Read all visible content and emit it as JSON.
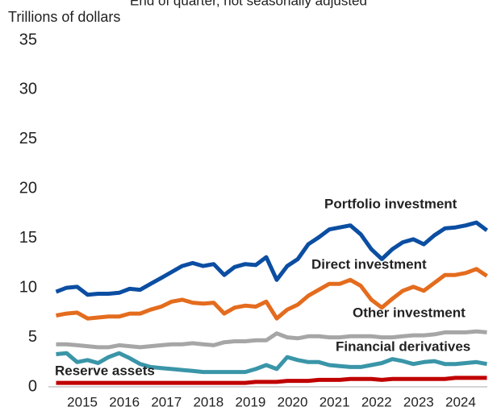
{
  "chart_data": {
    "type": "line",
    "subtitle": "End of quarter, not seasonally adjusted",
    "y_label": "Trillions of dollars",
    "x": [
      2014.875,
      2015.125,
      2015.375,
      2015.625,
      2015.875,
      2016.125,
      2016.375,
      2016.625,
      2016.875,
      2017.125,
      2017.375,
      2017.625,
      2017.875,
      2018.125,
      2018.375,
      2018.625,
      2018.875,
      2019.125,
      2019.375,
      2019.625,
      2019.875,
      2020.125,
      2020.375,
      2020.625,
      2020.875,
      2021.125,
      2021.375,
      2021.625,
      2021.875,
      2022.125,
      2022.375,
      2022.625,
      2022.875,
      2023.125,
      2023.375,
      2023.625,
      2023.875,
      2024.125,
      2024.375,
      2024.625,
      2024.875,
      2025.125
    ],
    "xlim": [
      2014.75,
      2025.25
    ],
    "xticks": [
      {
        "value": 2015.5,
        "label": "2015"
      },
      {
        "value": 2016.5,
        "label": "2016"
      },
      {
        "value": 2017.5,
        "label": "2017"
      },
      {
        "value": 2018.5,
        "label": "2018"
      },
      {
        "value": 2019.5,
        "label": "2019"
      },
      {
        "value": 2020.5,
        "label": "2020"
      },
      {
        "value": 2021.5,
        "label": "2021"
      },
      {
        "value": 2022.5,
        "label": "2022"
      },
      {
        "value": 2023.5,
        "label": "2023"
      },
      {
        "value": 2024.5,
        "label": "2024"
      }
    ],
    "ylim": [
      0,
      35
    ],
    "yticks": [
      0,
      5,
      10,
      15,
      20,
      25,
      30,
      35
    ],
    "grid": false,
    "series": [
      {
        "name": "Portfolio investment",
        "color": "#0b4ea2",
        "values": [
          9.6,
          10.0,
          10.1,
          9.3,
          9.4,
          9.4,
          9.5,
          9.9,
          9.8,
          10.4,
          11.0,
          11.6,
          12.2,
          12.5,
          12.2,
          12.4,
          11.3,
          12.1,
          12.4,
          12.3,
          13.1,
          10.8,
          12.2,
          12.9,
          14.4,
          15.1,
          15.9,
          16.1,
          16.3,
          15.4,
          13.9,
          12.9,
          13.9,
          14.6,
          14.9,
          14.4,
          15.3,
          16.0,
          16.1,
          16.3,
          16.6,
          15.8
        ]
      },
      {
        "name": "Direct investment",
        "color": "#e46c1e",
        "values": [
          7.2,
          7.4,
          7.5,
          6.9,
          7.0,
          7.1,
          7.1,
          7.4,
          7.4,
          7.8,
          8.1,
          8.6,
          8.8,
          8.5,
          8.4,
          8.5,
          7.4,
          8.0,
          8.2,
          8.1,
          8.6,
          6.9,
          7.8,
          8.3,
          9.2,
          9.8,
          10.4,
          10.4,
          10.8,
          10.2,
          8.8,
          8.0,
          8.9,
          9.7,
          10.1,
          9.7,
          10.5,
          11.3,
          11.3,
          11.5,
          11.9,
          11.2
        ]
      },
      {
        "name": "Other investment",
        "color": "#a6a6a6",
        "values": [
          4.3,
          4.3,
          4.2,
          4.1,
          4.0,
          4.0,
          4.2,
          4.1,
          4.0,
          4.1,
          4.2,
          4.3,
          4.3,
          4.4,
          4.3,
          4.2,
          4.5,
          4.6,
          4.6,
          4.7,
          4.7,
          5.4,
          5.0,
          4.9,
          5.1,
          5.1,
          5.0,
          5.0,
          5.1,
          5.1,
          5.1,
          5.0,
          5.0,
          5.1,
          5.2,
          5.2,
          5.3,
          5.5,
          5.5,
          5.5,
          5.6,
          5.5
        ]
      },
      {
        "name": "Financial derivatives",
        "color": "#3a95a8",
        "values": [
          3.3,
          3.4,
          2.5,
          2.7,
          2.4,
          3.0,
          3.4,
          2.9,
          2.3,
          2.0,
          1.9,
          1.8,
          1.7,
          1.6,
          1.5,
          1.5,
          1.5,
          1.5,
          1.5,
          1.8,
          2.2,
          1.8,
          3.0,
          2.7,
          2.5,
          2.5,
          2.2,
          2.1,
          2.0,
          2.0,
          2.2,
          2.4,
          2.8,
          2.6,
          2.3,
          2.5,
          2.6,
          2.3,
          2.3,
          2.4,
          2.5,
          2.3
        ]
      },
      {
        "name": "Reserve assets",
        "color": "#c00000",
        "values": [
          0.4,
          0.4,
          0.4,
          0.4,
          0.4,
          0.4,
          0.4,
          0.4,
          0.4,
          0.4,
          0.4,
          0.4,
          0.4,
          0.4,
          0.4,
          0.4,
          0.4,
          0.4,
          0.4,
          0.5,
          0.5,
          0.5,
          0.6,
          0.6,
          0.6,
          0.7,
          0.7,
          0.7,
          0.8,
          0.8,
          0.8,
          0.7,
          0.8,
          0.8,
          0.8,
          0.8,
          0.8,
          0.8,
          0.9,
          0.9,
          0.9,
          0.9
        ]
      }
    ]
  }
}
